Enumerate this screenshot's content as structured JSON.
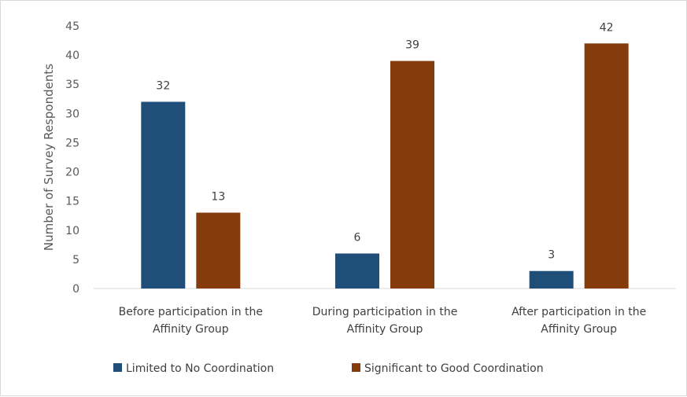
{
  "chart_data": {
    "type": "bar",
    "title": "",
    "xlabel": "",
    "ylabel": "Number of Survey Respondents",
    "ylim": [
      0,
      45
    ],
    "yticks": [
      0,
      5,
      10,
      15,
      20,
      25,
      30,
      35,
      40,
      45
    ],
    "categories": [
      [
        "Before participation in the",
        "Affinity Group"
      ],
      [
        "During participation in the",
        "Affinity Group"
      ],
      [
        "After participation in the",
        "Affinity Group"
      ]
    ],
    "series": [
      {
        "name": "Limited to No Coordination",
        "color": "#1f4e79",
        "values": [
          32,
          6,
          3
        ]
      },
      {
        "name": "Significant to Good Coordination",
        "color": "#843c0c",
        "values": [
          13,
          39,
          42
        ]
      }
    ],
    "grid": false,
    "legend_position": "bottom",
    "data_labels": true
  }
}
